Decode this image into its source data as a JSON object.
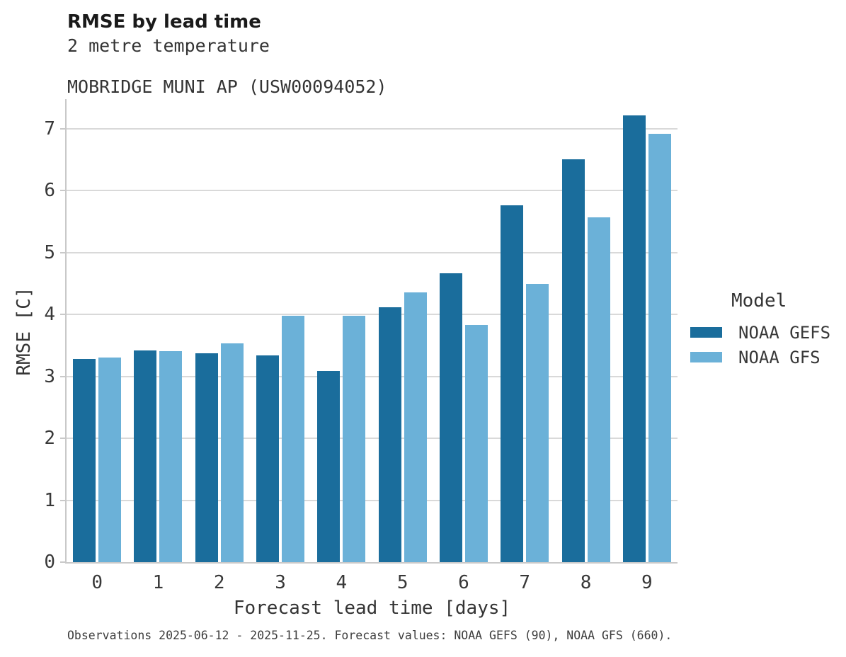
{
  "header": {
    "title": "RMSE by lead time",
    "subtitle_line1": "2 metre temperature",
    "subtitle_line2": "MOBRIDGE MUNI AP (USW00094052)"
  },
  "chart_data": {
    "type": "bar",
    "title": "RMSE by lead time",
    "subtitle": [
      "2 metre temperature",
      "MOBRIDGE MUNI AP (USW00094052)"
    ],
    "categories": [
      "0",
      "1",
      "2",
      "3",
      "4",
      "5",
      "6",
      "7",
      "8",
      "9"
    ],
    "series": [
      {
        "name": "NOAA GEFS",
        "color": "#1a6d9c",
        "values": [
          3.28,
          3.42,
          3.37,
          3.34,
          3.09,
          4.12,
          4.67,
          5.76,
          6.51,
          7.22
        ]
      },
      {
        "name": "NOAA GFS",
        "color": "#6bb1d8",
        "values": [
          3.31,
          3.41,
          3.53,
          3.98,
          3.98,
          4.36,
          3.83,
          4.49,
          5.57,
          6.92
        ]
      }
    ],
    "xlabel": "Forecast lead time [days]",
    "ylabel": "RMSE [C]",
    "ylim": [
      0,
      7.48
    ],
    "yticks": [
      0,
      1,
      2,
      3,
      4,
      5,
      6,
      7
    ],
    "grid": true,
    "legend_position": "right"
  },
  "legend": {
    "title": "Model",
    "items": [
      "NOAA GEFS",
      "NOAA GFS"
    ]
  },
  "caption": "Observations 2025-06-12 - 2025-11-25. Forecast values: NOAA GEFS (90), NOAA GFS (660).",
  "colors": {
    "grid": "#d9d9d9",
    "spine": "#c9c9c9",
    "gefs": "#1a6d9c",
    "gfs": "#6bb1d8"
  }
}
